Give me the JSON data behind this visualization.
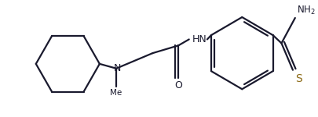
{
  "bg_color": "#ffffff",
  "line_color": "#1a1a2e",
  "sulfur_color": "#8B6914",
  "line_width": 1.6,
  "fig_width": 4.06,
  "fig_height": 1.5,
  "dpi": 100,
  "xlim": [
    0,
    406
  ],
  "ylim": [
    0,
    150
  ]
}
